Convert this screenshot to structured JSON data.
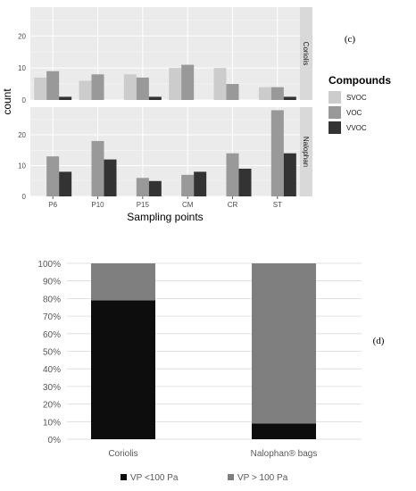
{
  "chart_data": [
    {
      "type": "bar",
      "panel_tag": "(c)",
      "facets": [
        "Coriolis",
        "Nalophan"
      ],
      "categories": [
        "P6",
        "P10",
        "P15",
        "CM",
        "CR",
        "ST"
      ],
      "xlabel": "Sampling points",
      "ylabel": "count",
      "ylim": [
        0,
        29
      ],
      "yticks": [
        "0",
        "10",
        "20"
      ],
      "legend_title": "Compounds",
      "legend_position": "right",
      "series_names": [
        "SVOC",
        "VOC",
        "VVOC"
      ],
      "colors": {
        "SVOC": "#cccccc",
        "VOC": "#999999",
        "VVOC": "#333333"
      },
      "values": {
        "Coriolis": {
          "SVOC": [
            7,
            6,
            8,
            10,
            10,
            4
          ],
          "VOC": [
            9,
            8,
            7,
            11,
            5,
            4
          ],
          "VVOC": [
            1,
            0,
            1,
            0,
            0,
            1
          ]
        },
        "Nalophan": {
          "SVOC": [
            0,
            0,
            0,
            0,
            0,
            0
          ],
          "VOC": [
            13,
            18,
            6,
            7,
            14,
            28
          ],
          "VVOC": [
            8,
            12,
            5,
            8,
            9,
            14
          ]
        }
      },
      "grid": true
    },
    {
      "type": "bar",
      "stacked": true,
      "panel_tag": "(d)",
      "categories": [
        "Coriolis",
        "Nalophan® bags"
      ],
      "ylim": [
        0,
        100
      ],
      "yticks": [
        "0%",
        "10%",
        "20%",
        "30%",
        "40%",
        "50%",
        "60%",
        "70%",
        "80%",
        "90%",
        "100%"
      ],
      "series": [
        {
          "name": "VP <100 Pa",
          "values": [
            79,
            9
          ],
          "color": "#0d0d0d"
        },
        {
          "name": "VP > 100 Pa",
          "values": [
            21,
            91
          ],
          "color": "#7f7f7f"
        }
      ],
      "legend_position": "bottom",
      "grid": true
    }
  ]
}
